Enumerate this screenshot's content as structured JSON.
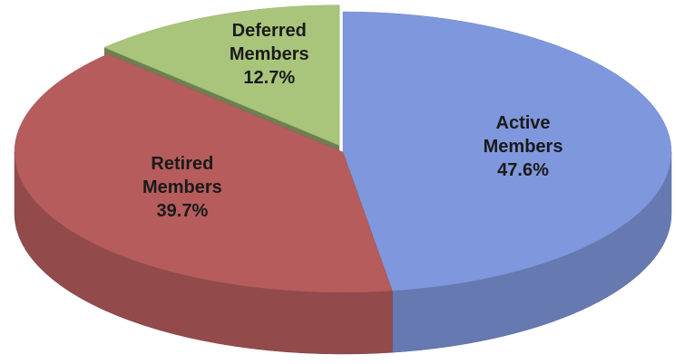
{
  "chart_data": {
    "type": "pie",
    "categories": [
      "Active Members",
      "Retired Members",
      "Deferred Members"
    ],
    "values": [
      47.6,
      39.7,
      12.7
    ],
    "value_labels": [
      "47.6%",
      "39.7%",
      "12.7%"
    ],
    "colors": [
      "#7f97dc",
      "#b65c5c",
      "#a9c57b"
    ]
  }
}
